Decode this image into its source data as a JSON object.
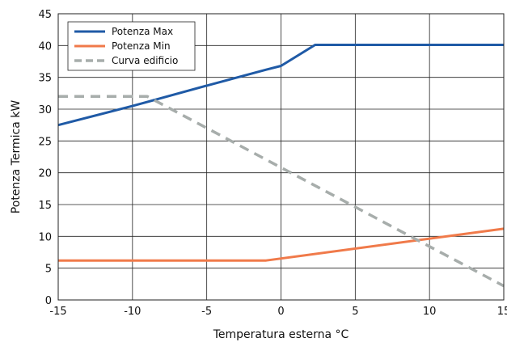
{
  "chart_data": {
    "type": "line",
    "xlabel": "Temperatura esterna °C",
    "ylabel": "Potenza Termica kW",
    "xlim": [
      -15,
      15
    ],
    "ylim": [
      0,
      45
    ],
    "xticks": [
      -15,
      -10,
      -5,
      0,
      5,
      10,
      15
    ],
    "yticks": [
      0,
      5,
      10,
      15,
      20,
      25,
      30,
      35,
      40,
      45
    ],
    "grid": true,
    "legend_position": "top-left",
    "series": [
      {
        "name": "Potenza Max",
        "color": "#1f5aa6",
        "style": "solid",
        "points": [
          [
            -15,
            27.5
          ],
          [
            -10,
            30.5
          ],
          [
            -5,
            33.7
          ],
          [
            -1,
            36.2
          ],
          [
            0,
            36.8
          ],
          [
            2.3,
            40.1
          ],
          [
            15,
            40.1
          ]
        ]
      },
      {
        "name": "Potenza Min",
        "color": "#f07a4a",
        "style": "solid",
        "points": [
          [
            -15,
            6.2
          ],
          [
            -1,
            6.2
          ],
          [
            15,
            11.2
          ]
        ]
      },
      {
        "name": "Curva edificio",
        "color": "#a7adab",
        "style": "dashed",
        "points": [
          [
            -15,
            32
          ],
          [
            -9,
            32
          ],
          [
            15,
            2.2
          ]
        ]
      }
    ]
  }
}
